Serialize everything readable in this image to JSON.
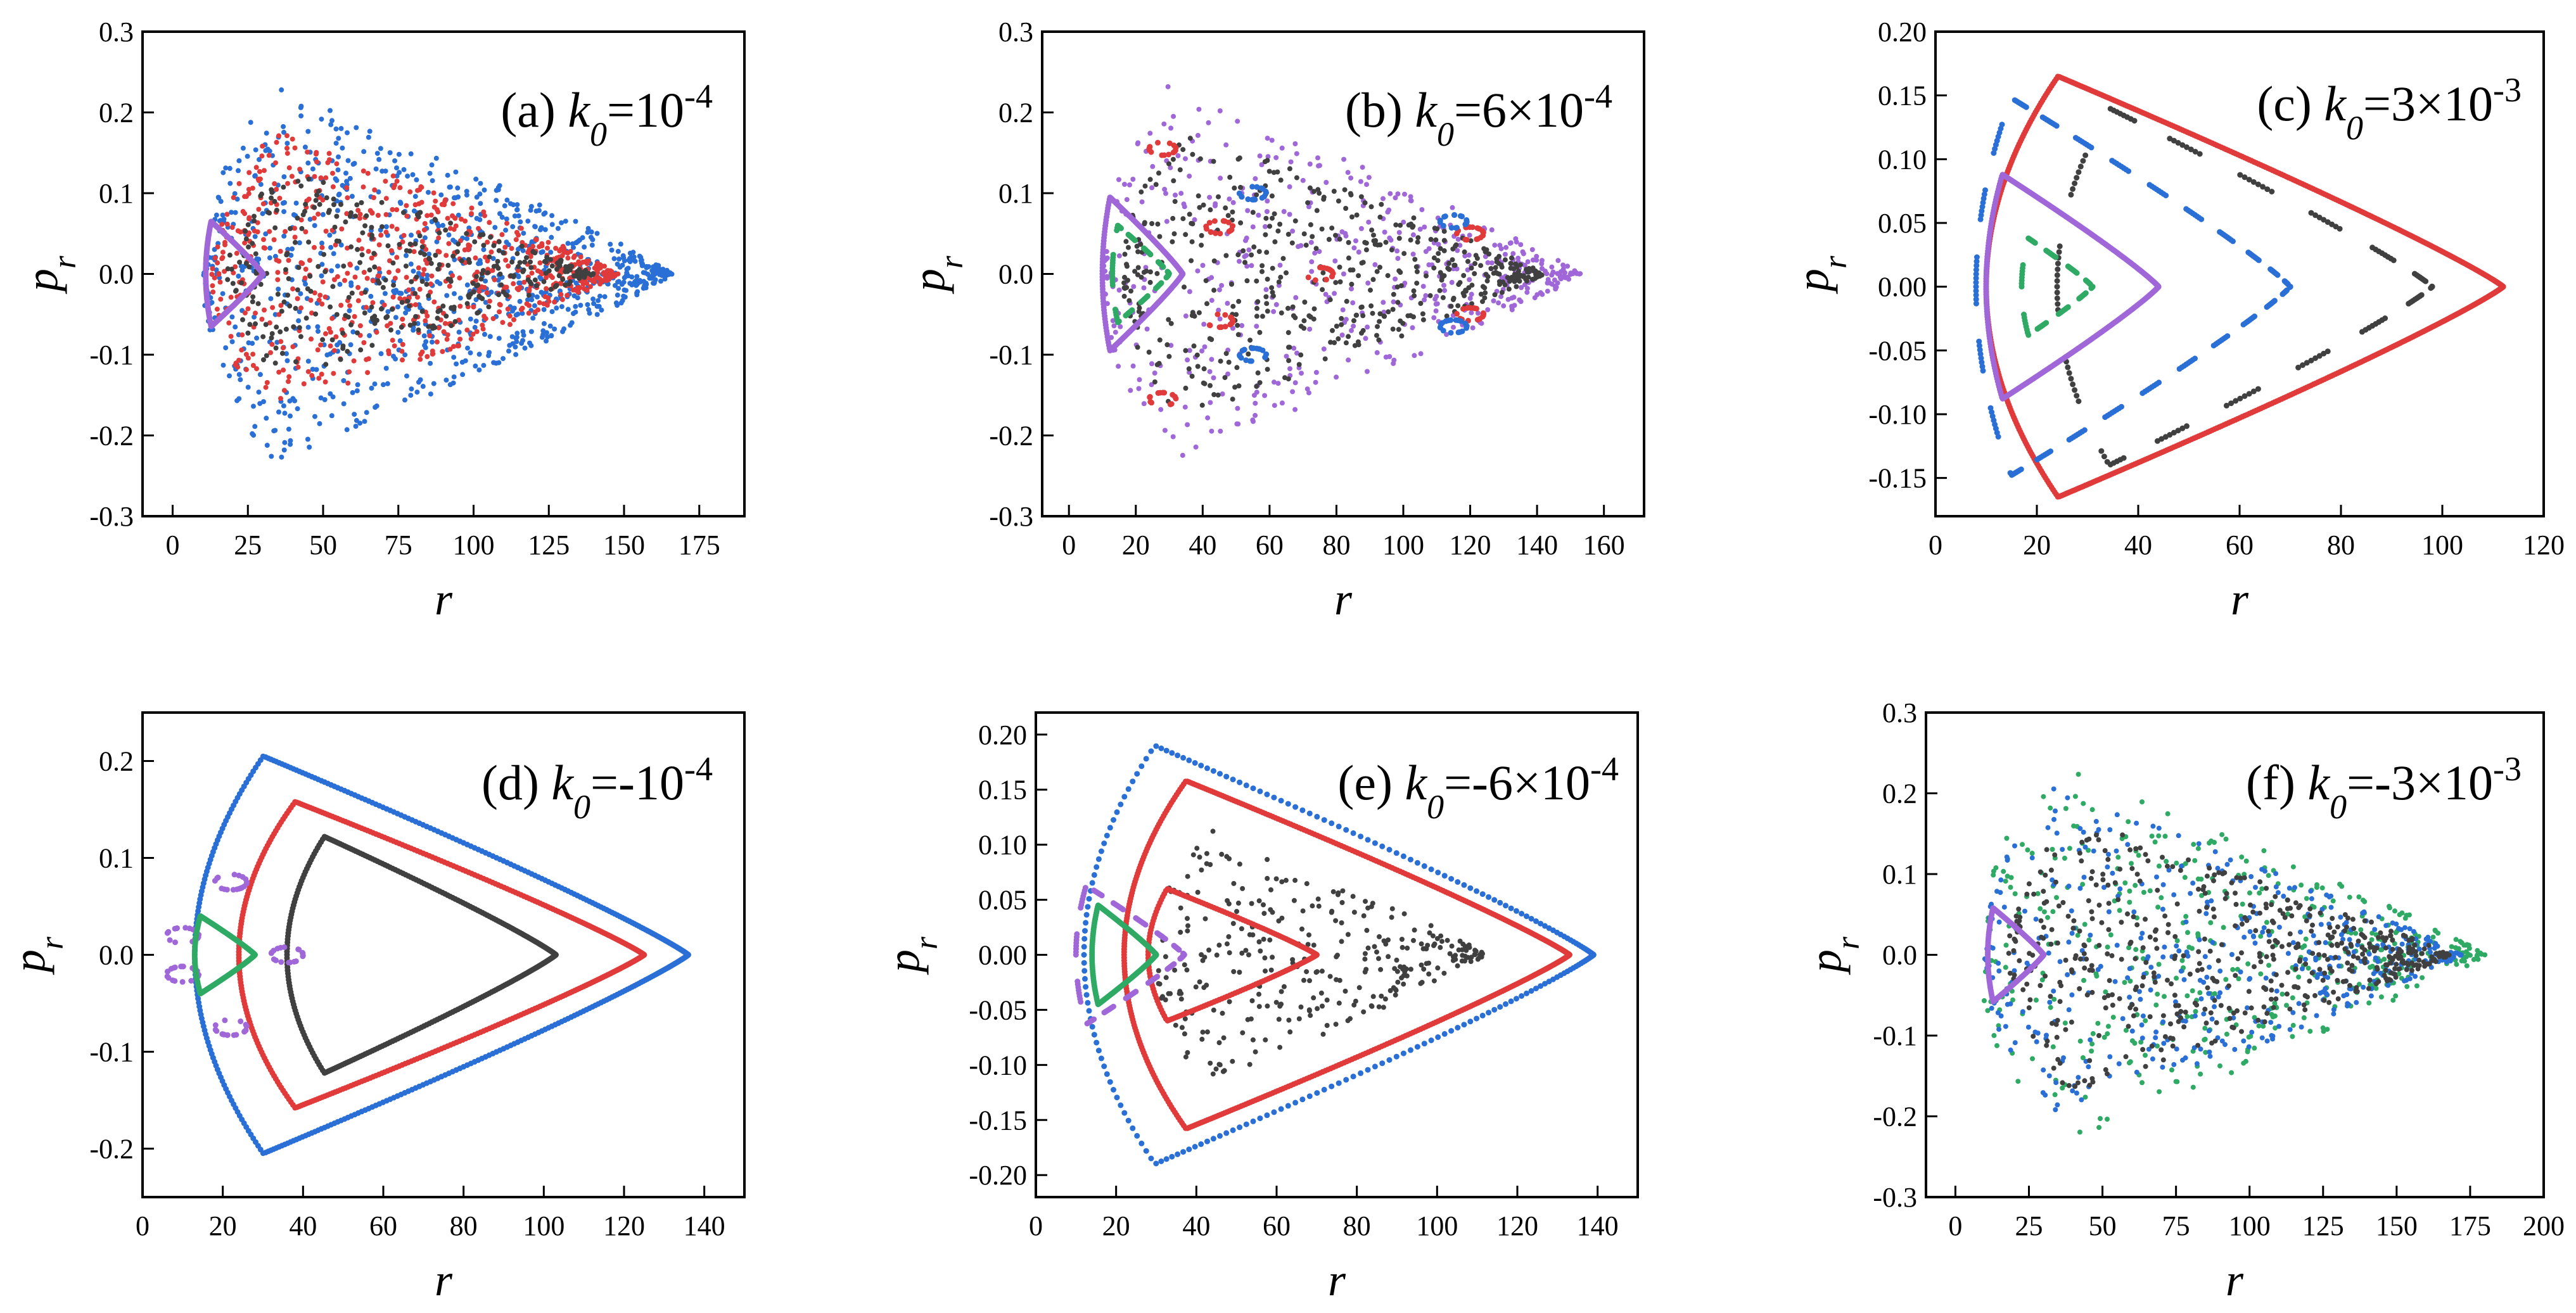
{
  "figure": {
    "description_colors": {
      "blue": "#2a6fd6",
      "red": "#e03a3a",
      "black": "#404040",
      "purple": "#a067d8",
      "green": "#2eaa64"
    }
  },
  "chart_data": [
    {
      "id": "a",
      "type": "scatter",
      "title_prefix": "(a) ",
      "title_k": "k",
      "title_sub": "0",
      "title_value": "=10",
      "title_sup": "-4",
      "xlabel": "r",
      "ylabel": "p",
      "ylabel_sub": "r",
      "xlim": [
        -10,
        190
      ],
      "ylim": [
        -0.3,
        0.3
      ],
      "xticks": [
        0,
        25,
        50,
        75,
        100,
        125,
        150,
        175
      ],
      "xtick_labels": [
        "0",
        "25",
        "50",
        "75",
        "100",
        "125",
        "150",
        "175"
      ],
      "yticks": [
        -0.3,
        -0.2,
        -0.1,
        0.0,
        0.1,
        0.2,
        0.3
      ],
      "ytick_labels": [
        "-0.3",
        "-0.2",
        "-0.1",
        "0.0",
        "0.1",
        "0.2",
        "0.3"
      ],
      "series": [
        {
          "name": "chaotic-blue",
          "color": "#2a6fd6",
          "kind": "chaotic",
          "rmin": 10,
          "rmax": 166,
          "pmax": 0.235,
          "shape": 0.6,
          "n": 900
        },
        {
          "name": "chaotic-red",
          "color": "#e03a3a",
          "kind": "chaotic",
          "rmin": 13,
          "rmax": 148,
          "pmax": 0.18,
          "shape": 0.6,
          "n": 700
        },
        {
          "name": "chaotic-black",
          "color": "#404040",
          "kind": "chaotic",
          "rmin": 18,
          "rmax": 140,
          "pmax": 0.13,
          "shape": 0.6,
          "n": 350
        },
        {
          "name": "regular-purple",
          "color": "#a067d8",
          "kind": "loop",
          "rmin": 11,
          "rmax": 30,
          "pmax": 0.065,
          "shape": 0.3,
          "n": 400
        }
      ]
    },
    {
      "id": "b",
      "type": "scatter",
      "title_prefix": "(b) ",
      "title_k": "k",
      "title_sub": "0",
      "title_value": "=6×10",
      "title_sup": "-4",
      "xlabel": "r",
      "ylabel": "p",
      "ylabel_sub": "r",
      "xlim": [
        -8,
        172
      ],
      "ylim": [
        -0.3,
        0.3
      ],
      "xticks": [
        0,
        20,
        40,
        60,
        80,
        100,
        120,
        140,
        160
      ],
      "xtick_labels": [
        "0",
        "20",
        "40",
        "60",
        "80",
        "100",
        "120",
        "140",
        "160"
      ],
      "yticks": [
        -0.3,
        -0.2,
        -0.1,
        0.0,
        0.1,
        0.2,
        0.3
      ],
      "ytick_labels": [
        "-0.3",
        "-0.2",
        "-0.1",
        "0.0",
        "0.1",
        "0.2",
        "0.3"
      ],
      "series": [
        {
          "name": "boundary-purple",
          "color": "#a067d8",
          "kind": "chaotic",
          "rmin": 10,
          "rmax": 153,
          "pmax": 0.235,
          "shape": 0.55,
          "n": 500
        },
        {
          "name": "chaotic-black",
          "color": "#404040",
          "kind": "chaotic",
          "rmin": 16,
          "rmax": 142,
          "pmax": 0.18,
          "shape": 0.55,
          "n": 500
        },
        {
          "name": "inner-purple",
          "color": "#a067d8",
          "kind": "loop",
          "rmin": 10,
          "rmax": 34,
          "pmax": 0.095,
          "shape": 0.3,
          "n": 260
        },
        {
          "name": "inner-green",
          "color": "#2eaa64",
          "kind": "dashloop",
          "rmin": 13,
          "rmax": 30,
          "pmax": 0.06,
          "shape": 0.3,
          "n": 180
        },
        {
          "name": "island-red",
          "color": "#e03a3a",
          "kind": "islands",
          "rmin": 25,
          "rmax": 125,
          "pmax": 0.16,
          "shape": 0.55,
          "n": 120
        },
        {
          "name": "island-blue",
          "color": "#2a6fd6",
          "kind": "islands2",
          "rmin": 25,
          "rmax": 125,
          "pmax": 0.16,
          "shape": 0.55,
          "n": 80
        }
      ]
    },
    {
      "id": "c",
      "type": "scatter",
      "title_prefix": "(c) ",
      "title_k": "k",
      "title_sub": "0",
      "title_value": "=3×10",
      "title_sup": "-3",
      "xlabel": "r",
      "ylabel": "p",
      "ylabel_sub": "r",
      "xlim": [
        0,
        120
      ],
      "ylim": [
        -0.18,
        0.2
      ],
      "xticks": [
        0,
        20,
        40,
        60,
        80,
        100,
        120
      ],
      "xtick_labels": [
        "0",
        "20",
        "40",
        "60",
        "80",
        "100",
        "120"
      ],
      "yticks": [
        -0.15,
        -0.1,
        -0.05,
        0.0,
        0.05,
        0.1,
        0.15,
        0.2
      ],
      "ytick_labels": [
        "-0.15",
        "-0.10",
        "-0.05",
        "0.00",
        "0.05",
        "0.10",
        "0.15",
        "0.20"
      ],
      "series": [
        {
          "name": "outer-red",
          "color": "#e03a3a",
          "kind": "loop",
          "rmin": 10,
          "rmax": 112,
          "pmax": 0.165,
          "shape": 0.55,
          "n": 700
        },
        {
          "name": "black-dashed",
          "color": "#404040",
          "kind": "dashloop",
          "rmin": 24,
          "rmax": 98,
          "pmax": 0.14,
          "shape": 0.55,
          "n": 260
        },
        {
          "name": "blue-dashed",
          "color": "#2a6fd6",
          "kind": "dashloop",
          "rmin": 8,
          "rmax": 70,
          "pmax": 0.148,
          "shape": 0.4,
          "n": 420
        },
        {
          "name": "purple-loop",
          "color": "#a067d8",
          "kind": "loop",
          "rmin": 10,
          "rmax": 44,
          "pmax": 0.088,
          "shape": 0.3,
          "n": 420
        },
        {
          "name": "green-dashed",
          "color": "#2eaa64",
          "kind": "dashloop",
          "rmin": 17,
          "rmax": 31,
          "pmax": 0.038,
          "shape": 0.3,
          "n": 160
        }
      ]
    },
    {
      "id": "d",
      "type": "scatter",
      "title_prefix": "(d) ",
      "title_k": "k",
      "title_sub": "0",
      "title_value": "=-10",
      "title_sup": "-4",
      "xlabel": "r",
      "ylabel": "p",
      "ylabel_sub": "r",
      "xlim": [
        0,
        150
      ],
      "ylim": [
        -0.25,
        0.25
      ],
      "xticks": [
        0,
        20,
        40,
        60,
        80,
        100,
        120,
        140
      ],
      "xtick_labels": [
        "0",
        "20",
        "40",
        "60",
        "80",
        "100",
        "120",
        "140"
      ],
      "yticks": [
        -0.2,
        -0.1,
        0.0,
        0.1,
        0.2
      ],
      "ytick_labels": [
        "-0.2",
        "-0.1",
        "0.0",
        "0.1",
        "0.2"
      ],
      "series": [
        {
          "name": "outer-blue",
          "color": "#2a6fd6",
          "kind": "dotloop",
          "rmin": 13,
          "rmax": 136,
          "pmax": 0.205,
          "shape": 0.55,
          "n": 420
        },
        {
          "name": "red",
          "color": "#e03a3a",
          "kind": "dotloop",
          "rmin": 24,
          "rmax": 125,
          "pmax": 0.158,
          "shape": 0.55,
          "n": 420
        },
        {
          "name": "black",
          "color": "#404040",
          "kind": "dotloop",
          "rmin": 36,
          "rmax": 103,
          "pmax": 0.122,
          "shape": 0.55,
          "n": 320
        },
        {
          "name": "purple-islands",
          "color": "#a067d8",
          "kind": "islands3",
          "rmin": 9,
          "rmax": 38,
          "pmax": 0.08,
          "shape": 0.3,
          "n": 100
        },
        {
          "name": "green",
          "color": "#2eaa64",
          "kind": "loop",
          "rmin": 13,
          "rmax": 28,
          "pmax": 0.04,
          "shape": 0.3,
          "n": 260
        }
      ]
    },
    {
      "id": "e",
      "type": "scatter",
      "title_prefix": "(e) ",
      "title_k": "k",
      "title_sub": "0",
      "title_value": "=-6×10",
      "title_sup": "-4",
      "xlabel": "r",
      "ylabel": "p",
      "ylabel_sub": "r",
      "xlim": [
        0,
        150
      ],
      "ylim": [
        -0.22,
        0.22
      ],
      "xticks": [
        0,
        20,
        40,
        60,
        80,
        100,
        120,
        140
      ],
      "xtick_labels": [
        "0",
        "20",
        "40",
        "60",
        "80",
        "100",
        "120",
        "140"
      ],
      "yticks": [
        -0.2,
        -0.15,
        -0.1,
        -0.05,
        0.0,
        0.05,
        0.1,
        0.15,
        0.2
      ],
      "ytick_labels": [
        "-0.20",
        "-0.15",
        "-0.10",
        "-0.05",
        "0.00",
        "0.05",
        "0.10",
        "0.15",
        "0.20"
      ],
      "series": [
        {
          "name": "outer-blue",
          "color": "#2a6fd6",
          "kind": "dotloop",
          "rmin": 12,
          "rmax": 139,
          "pmax": 0.19,
          "shape": 0.55,
          "n": 220
        },
        {
          "name": "red",
          "color": "#e03a3a",
          "kind": "loop",
          "rmin": 22,
          "rmax": 133,
          "pmax": 0.158,
          "shape": 0.55,
          "n": 520
        },
        {
          "name": "black",
          "color": "#404040",
          "kind": "chaotic",
          "rmin": 30,
          "rmax": 112,
          "pmax": 0.12,
          "shape": 0.55,
          "n": 320
        },
        {
          "name": "red-inner",
          "color": "#e03a3a",
          "kind": "loop",
          "rmin": 28,
          "rmax": 70,
          "pmax": 0.06,
          "shape": 0.4,
          "n": 200
        },
        {
          "name": "purple",
          "color": "#a067d8",
          "kind": "dashloop",
          "rmin": 10,
          "rmax": 37,
          "pmax": 0.063,
          "shape": 0.3,
          "n": 240
        },
        {
          "name": "green",
          "color": "#2eaa64",
          "kind": "loop",
          "rmin": 14,
          "rmax": 30,
          "pmax": 0.045,
          "shape": 0.3,
          "n": 240
        }
      ]
    },
    {
      "id": "f",
      "type": "scatter",
      "title_prefix": "(f) ",
      "title_k": "k",
      "title_sub": "0",
      "title_value": "=-3×10",
      "title_sup": "-3",
      "xlabel": "r",
      "ylabel": "p",
      "ylabel_sub": "r",
      "xlim": [
        -10,
        200
      ],
      "ylim": [
        -0.3,
        0.3
      ],
      "xticks": [
        0,
        25,
        50,
        75,
        100,
        125,
        150,
        175,
        200
      ],
      "xtick_labels": [
        "0",
        "25",
        "50",
        "75",
        "100",
        "125",
        "150",
        "175",
        "200"
      ],
      "yticks": [
        -0.3,
        -0.2,
        -0.1,
        0.0,
        0.1,
        0.2,
        0.3
      ],
      "ytick_labels": [
        "-0.3",
        "-0.2",
        "-0.1",
        "0.0",
        "0.1",
        "0.2",
        "0.3"
      ],
      "series": [
        {
          "name": "green",
          "color": "#2eaa64",
          "kind": "chaotic",
          "rmin": 8,
          "rmax": 180,
          "pmax": 0.24,
          "shape": 0.55,
          "n": 450
        },
        {
          "name": "blue",
          "color": "#2a6fd6",
          "kind": "chaotic",
          "rmin": 10,
          "rmax": 172,
          "pmax": 0.21,
          "shape": 0.55,
          "n": 450
        },
        {
          "name": "black",
          "color": "#404040",
          "kind": "chaotic",
          "rmin": 18,
          "rmax": 168,
          "pmax": 0.17,
          "shape": 0.55,
          "n": 520
        },
        {
          "name": "purple",
          "color": "#a067d8",
          "kind": "loop",
          "rmin": 11,
          "rmax": 30,
          "pmax": 0.058,
          "shape": 0.3,
          "n": 260
        }
      ]
    }
  ]
}
